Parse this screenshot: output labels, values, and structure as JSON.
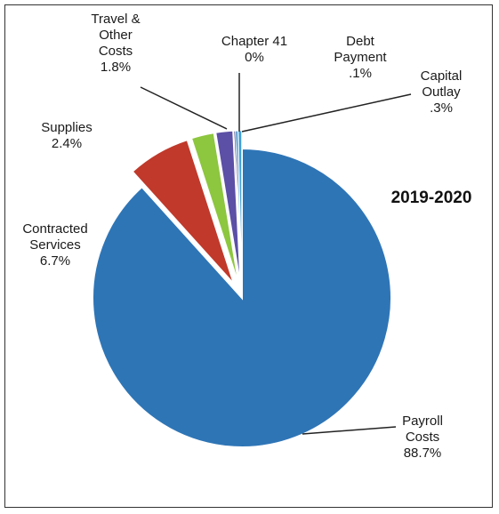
{
  "chart_data": {
    "type": "pie",
    "title": "2019-2020",
    "slices": [
      {
        "name": "Payroll Costs",
        "label_lines": [
          "Payroll",
          "Costs"
        ],
        "percent_label": "88.7%",
        "value": 88.7,
        "color": "#2e75b6",
        "exploded": false
      },
      {
        "name": "Contracted Services",
        "label_lines": [
          "Contracted",
          "Services"
        ],
        "percent_label": "6.7%",
        "value": 6.7,
        "color": "#c0392b",
        "exploded": true
      },
      {
        "name": "Supplies",
        "label_lines": [
          "Supplies"
        ],
        "percent_label": "2.4%",
        "value": 2.4,
        "color": "#8dc63f",
        "exploded": true
      },
      {
        "name": "Travel & Other Costs",
        "label_lines": [
          "Travel &",
          "Other",
          "Costs"
        ],
        "percent_label": "1.8%",
        "value": 1.8,
        "color": "#5b4fa6",
        "exploded": true
      },
      {
        "name": "Chapter 41",
        "label_lines": [
          "Chapter 41"
        ],
        "percent_label": "0%",
        "value": 0.0,
        "color": "#2a2a6e",
        "exploded": true
      },
      {
        "name": "Debt Payment",
        "label_lines": [
          "Debt",
          "Payment"
        ],
        "percent_label": ".1%",
        "value": 0.1,
        "color": "#1f6fb5",
        "exploded": true
      },
      {
        "name": "Capital Outlay",
        "label_lines": [
          "Capital",
          "Outlay"
        ],
        "percent_label": ".3%",
        "value": 0.3,
        "color": "#3fa0d8",
        "exploded": true
      }
    ]
  }
}
